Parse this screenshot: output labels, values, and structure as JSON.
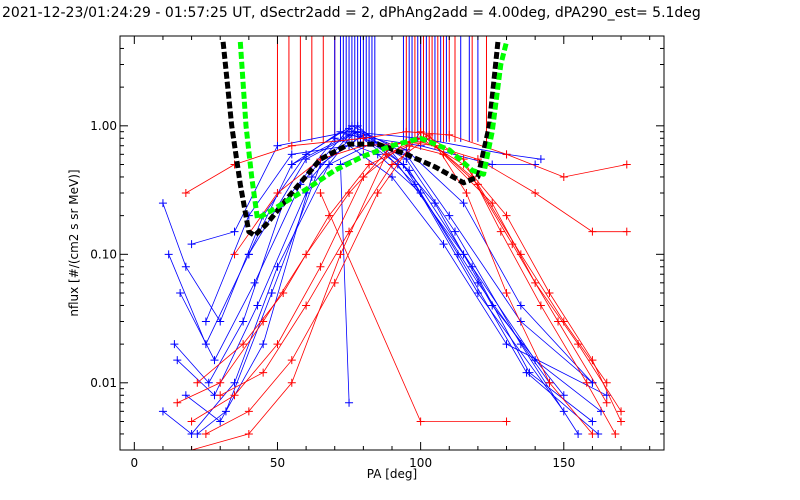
{
  "chart_data": {
    "type": "line",
    "title": "2021-12-23/01:24:29 - 01:57:25 UT, dSectr2add = 2, dPhAng2add = 4.00deg, dPA290_est=   5.1deg",
    "xlabel": "PA [deg]",
    "ylabel": "nflux [#/(cm2 s sr MeV)]",
    "xlim": [
      -5,
      185
    ],
    "ylim": [
      0.003,
      5
    ],
    "yscale": "log",
    "x_ticks": [
      0,
      50,
      100,
      150
    ],
    "x_tick_labels": [
      "0",
      "50",
      "100",
      "150"
    ],
    "y_ticks": [
      0.01,
      0.1,
      1.0
    ],
    "y_tick_labels": [
      "0.01",
      "0.10",
      "1.00"
    ],
    "grid": false,
    "legend": "none",
    "colors": {
      "red": "#ff0000",
      "blue": "#0000ff",
      "black": "#000000",
      "green": "#00ff00"
    },
    "series": [
      {
        "color": "blue",
        "style": "line-plus",
        "points": [
          [
            10,
            0.25
          ],
          [
            18,
            0.08
          ],
          [
            30,
            0.03
          ],
          [
            45,
            0.2
          ],
          [
            60,
            0.6
          ],
          [
            76,
            1.0
          ],
          [
            95,
            0.6
          ],
          [
            110,
            0.2
          ],
          [
            135,
            0.03
          ],
          [
            160,
            0.01
          ]
        ]
      },
      {
        "color": "blue",
        "style": "line-plus",
        "points": [
          [
            12,
            0.1
          ],
          [
            25,
            0.02
          ],
          [
            40,
            0.1
          ],
          [
            55,
            0.5
          ],
          [
            72,
            0.9
          ],
          [
            88,
            0.7
          ],
          [
            105,
            0.25
          ],
          [
            125,
            0.04
          ],
          [
            150,
            0.008
          ]
        ]
      },
      {
        "color": "blue",
        "style": "line-plus",
        "points": [
          [
            16,
            0.05
          ],
          [
            28,
            0.015
          ],
          [
            42,
            0.06
          ],
          [
            58,
            0.35
          ],
          [
            75,
            0.95
          ],
          [
            92,
            0.5
          ],
          [
            115,
            0.1
          ],
          [
            140,
            0.015
          ],
          [
            163,
            0.006
          ]
        ]
      },
      {
        "color": "blue",
        "style": "line-plus",
        "points": [
          [
            14,
            0.02
          ],
          [
            26,
            0.01
          ],
          [
            38,
            0.03
          ],
          [
            52,
            0.25
          ],
          [
            70,
            0.8
          ],
          [
            85,
            0.6
          ],
          [
            100,
            0.3
          ],
          [
            120,
            0.06
          ],
          [
            145,
            0.01
          ]
        ]
      },
      {
        "color": "blue",
        "style": "line-plus",
        "points": [
          [
            18,
            0.008
          ],
          [
            30,
            0.005
          ],
          [
            45,
            0.02
          ],
          [
            62,
            0.4
          ],
          [
            78,
            1.0
          ],
          [
            96,
            0.45
          ],
          [
            118,
            0.08
          ],
          [
            138,
            0.012
          ],
          [
            160,
            0.005
          ]
        ]
      },
      {
        "color": "blue",
        "style": "line-plus",
        "points": [
          [
            20,
            0.12
          ],
          [
            35,
            0.15
          ],
          [
            50,
            0.7
          ],
          [
            75,
            0.9
          ],
          [
            100,
            0.8
          ],
          [
            130,
            0.6
          ],
          [
            142,
            0.55
          ]
        ]
      },
      {
        "color": "blue",
        "style": "line-plus",
        "points": [
          [
            22,
            0.004
          ],
          [
            32,
            0.006
          ],
          [
            48,
            0.05
          ],
          [
            65,
            0.5
          ],
          [
            80,
            0.85
          ],
          [
            95,
            0.55
          ],
          [
            112,
            0.15
          ],
          [
            135,
            0.02
          ],
          [
            155,
            0.004
          ]
        ]
      },
      {
        "color": "blue",
        "style": "line-plus",
        "points": [
          [
            25,
            0.03
          ],
          [
            40,
            0.2
          ],
          [
            55,
            0.6
          ],
          [
            75,
            0.7
          ],
          [
            90,
            0.4
          ],
          [
            108,
            0.12
          ],
          [
            130,
            0.02
          ],
          [
            165,
            0.008
          ]
        ]
      },
      {
        "color": "blue",
        "style": "line-plus",
        "points": [
          [
            10,
            0.006
          ],
          [
            20,
            0.004
          ],
          [
            35,
            0.01
          ],
          [
            50,
            0.08
          ],
          [
            68,
            0.5
          ],
          [
            84,
            0.75
          ],
          [
            98,
            0.35
          ],
          [
            120,
            0.05
          ],
          [
            150,
            0.006
          ]
        ]
      },
      {
        "color": "blue",
        "style": "line-plus",
        "points": [
          [
            15,
            0.015
          ],
          [
            28,
            0.008
          ],
          [
            43,
            0.04
          ],
          [
            60,
            0.3
          ],
          [
            77,
            0.9
          ],
          [
            94,
            0.5
          ],
          [
            113,
            0.1
          ],
          [
            137,
            0.012
          ],
          [
            162,
            0.004
          ]
        ]
      },
      {
        "color": "blue",
        "style": "line-plus",
        "points": [
          [
            55,
            0.5
          ],
          [
            75,
            0.85
          ],
          [
            100,
            0.7
          ],
          [
            125,
            0.5
          ],
          [
            140,
            0.5
          ]
        ]
      },
      {
        "color": "blue",
        "style": "line-plus",
        "points": [
          [
            40,
            0.1
          ],
          [
            60,
            0.55
          ],
          [
            78,
            0.9
          ],
          [
            95,
            0.65
          ],
          [
            115,
            0.25
          ],
          [
            135,
            0.04
          ],
          [
            160,
            0.01
          ]
        ]
      },
      {
        "color": "blue",
        "style": "line-plus",
        "points": [
          [
            75,
            0.007
          ],
          [
            72,
            0.5
          ],
          [
            80,
            0.6
          ]
        ]
      },
      {
        "color": "red",
        "style": "line-plus",
        "points": [
          [
            15,
            0.007
          ],
          [
            30,
            0.01
          ],
          [
            45,
            0.03
          ],
          [
            60,
            0.1
          ],
          [
            75,
            0.3
          ],
          [
            90,
            0.7
          ],
          [
            100,
            0.8
          ],
          [
            115,
            0.5
          ],
          [
            130,
            0.2
          ],
          [
            145,
            0.05
          ],
          [
            160,
            0.015
          ],
          [
            170,
            0.005
          ]
        ]
      },
      {
        "color": "red",
        "style": "line-plus",
        "points": [
          [
            20,
            0.005
          ],
          [
            35,
            0.008
          ],
          [
            50,
            0.02
          ],
          [
            65,
            0.08
          ],
          [
            80,
            0.4
          ],
          [
            95,
            0.75
          ],
          [
            105,
            0.7
          ],
          [
            120,
            0.35
          ],
          [
            135,
            0.1
          ],
          [
            150,
            0.03
          ],
          [
            165,
            0.01
          ]
        ]
      },
      {
        "color": "red",
        "style": "line-plus",
        "points": [
          [
            18,
            0.3
          ],
          [
            35,
            0.5
          ],
          [
            55,
            0.7
          ],
          [
            80,
            0.8
          ],
          [
            95,
            0.9
          ],
          [
            110,
            0.85
          ],
          [
            130,
            0.6
          ],
          [
            150,
            0.4
          ],
          [
            172,
            0.5
          ]
        ]
      },
      {
        "color": "red",
        "style": "line-plus",
        "points": [
          [
            25,
            0.004
          ],
          [
            40,
            0.006
          ],
          [
            55,
            0.015
          ],
          [
            70,
            0.06
          ],
          [
            85,
            0.3
          ],
          [
            100,
            0.9
          ],
          [
            115,
            0.55
          ],
          [
            128,
            0.15
          ],
          [
            142,
            0.04
          ],
          [
            158,
            0.01
          ],
          [
            168,
            0.004
          ]
        ]
      },
      {
        "color": "red",
        "style": "line-plus",
        "points": [
          [
            30,
            0.008
          ],
          [
            45,
            0.012
          ],
          [
            60,
            0.04
          ],
          [
            75,
            0.15
          ],
          [
            90,
            0.5
          ],
          [
            102,
            0.8
          ],
          [
            118,
            0.4
          ],
          [
            132,
            0.12
          ],
          [
            148,
            0.03
          ],
          [
            165,
            0.007
          ]
        ]
      },
      {
        "color": "red",
        "style": "line-plus",
        "points": [
          [
            22,
            0.01
          ],
          [
            38,
            0.02
          ],
          [
            52,
            0.05
          ],
          [
            68,
            0.2
          ],
          [
            82,
            0.5
          ],
          [
            96,
            0.7
          ],
          [
            108,
            0.6
          ],
          [
            125,
            0.25
          ],
          [
            140,
            0.06
          ],
          [
            155,
            0.02
          ],
          [
            170,
            0.006
          ]
        ]
      },
      {
        "color": "red",
        "style": "line-plus",
        "points": [
          [
            35,
            0.1
          ],
          [
            50,
            0.3
          ],
          [
            65,
            0.55
          ],
          [
            80,
            0.7
          ],
          [
            100,
            0.75
          ],
          [
            120,
            0.55
          ],
          [
            140,
            0.3
          ],
          [
            160,
            0.15
          ],
          [
            172,
            0.15
          ]
        ]
      },
      {
        "color": "red",
        "style": "line-plus",
        "points": [
          [
            20,
            0.003
          ],
          [
            40,
            0.004
          ],
          [
            55,
            0.01
          ],
          [
            72,
            0.1
          ],
          [
            88,
            0.6
          ],
          [
            103,
            0.85
          ],
          [
            116,
            0.3
          ],
          [
            130,
            0.05
          ],
          [
            145,
            0.01
          ],
          [
            160,
            0.004
          ]
        ]
      },
      {
        "color": "red",
        "style": "line-plus",
        "points": [
          [
            65,
            0.3
          ],
          [
            100,
            0.005
          ],
          [
            130,
            0.005
          ]
        ]
      },
      {
        "color": "black",
        "style": "thick-dashed",
        "points": [
          [
            31,
            4.5
          ],
          [
            34,
            1.0
          ],
          [
            37,
            0.35
          ],
          [
            40,
            0.15
          ],
          [
            42,
            0.14
          ],
          [
            46,
            0.17
          ],
          [
            55,
            0.3
          ],
          [
            65,
            0.55
          ],
          [
            75,
            0.72
          ],
          [
            85,
            0.72
          ],
          [
            95,
            0.6
          ],
          [
            105,
            0.48
          ],
          [
            115,
            0.36
          ],
          [
            120,
            0.4
          ],
          [
            124,
            1.0
          ],
          [
            127,
            4.5
          ]
        ]
      },
      {
        "color": "green",
        "style": "thick-dashed",
        "points": [
          [
            37,
            4.5
          ],
          [
            39,
            1.0
          ],
          [
            41,
            0.4
          ],
          [
            43,
            0.19
          ],
          [
            48,
            0.22
          ],
          [
            60,
            0.32
          ],
          [
            70,
            0.45
          ],
          [
            80,
            0.58
          ],
          [
            90,
            0.7
          ],
          [
            100,
            0.8
          ],
          [
            110,
            0.65
          ],
          [
            118,
            0.45
          ],
          [
            122,
            0.42
          ],
          [
            125,
            0.9
          ],
          [
            128,
            3.0
          ],
          [
            130,
            4.5
          ]
        ]
      }
    ],
    "vlines": {
      "red": [
        50,
        54,
        58,
        62,
        66,
        70,
        95,
        98,
        100,
        101,
        103,
        104,
        106,
        108,
        110,
        112,
        118,
        123
      ],
      "blue": [
        70,
        72,
        73,
        74,
        75,
        76,
        77,
        78,
        79,
        80,
        81,
        82,
        83,
        84,
        94,
        96,
        97,
        99,
        100,
        102,
        105,
        107,
        109,
        114,
        117,
        120
      ]
    }
  }
}
